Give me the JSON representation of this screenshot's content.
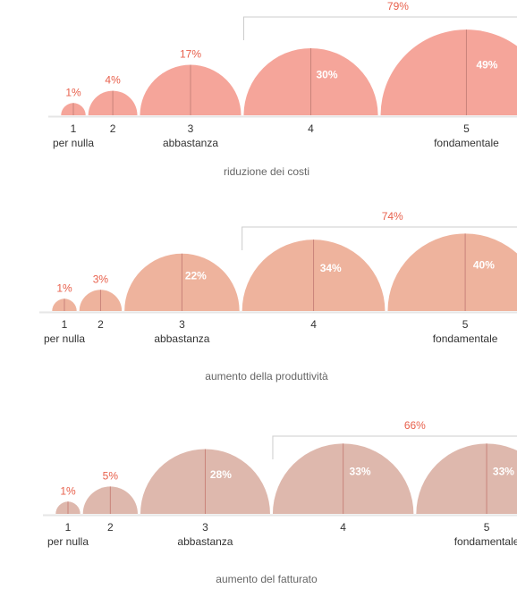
{
  "chart_data": [
    {
      "type": "semicircle-bubble",
      "caption": "riduzione dei costi",
      "color": "#f5a59a",
      "categories": [
        "1",
        "2",
        "3",
        "4",
        "5"
      ],
      "category_labels": [
        "per nulla",
        "",
        "abbastanza",
        "",
        "fondamentale"
      ],
      "values": [
        1,
        4,
        17,
        30,
        49
      ],
      "value_labels": [
        "1%",
        "4%",
        "17%",
        "30%",
        "49%"
      ],
      "bracket": {
        "categories": [
          "4",
          "5"
        ],
        "label": "79%"
      }
    },
    {
      "type": "semicircle-bubble",
      "caption": "aumento della produttività",
      "color": "#eeb39d",
      "categories": [
        "1",
        "2",
        "3",
        "4",
        "5"
      ],
      "category_labels": [
        "per nulla",
        "",
        "abbastanza",
        "",
        "fondamentale"
      ],
      "values": [
        1,
        3,
        22,
        34,
        40
      ],
      "value_labels": [
        "1%",
        "3%",
        "22%",
        "34%",
        "40%"
      ],
      "bracket": {
        "categories": [
          "4",
          "5"
        ],
        "label": "74%"
      }
    },
    {
      "type": "semicircle-bubble",
      "caption": "aumento del fatturato",
      "color": "#deb8ad",
      "categories": [
        "1",
        "2",
        "3",
        "4",
        "5"
      ],
      "category_labels": [
        "per nulla",
        "",
        "abbastanza",
        "",
        "fondamentale"
      ],
      "values": [
        1,
        5,
        28,
        33,
        33
      ],
      "value_labels": [
        "1%",
        "5%",
        "28%",
        "33%",
        "33%"
      ],
      "bracket": {
        "categories": [
          "4",
          "5"
        ],
        "label": "66%"
      }
    }
  ],
  "colors": {
    "accent_text": "#e8604c",
    "divider": "#c9837a",
    "baseline": "#e6e6e6",
    "bracket": "#cccccc"
  }
}
